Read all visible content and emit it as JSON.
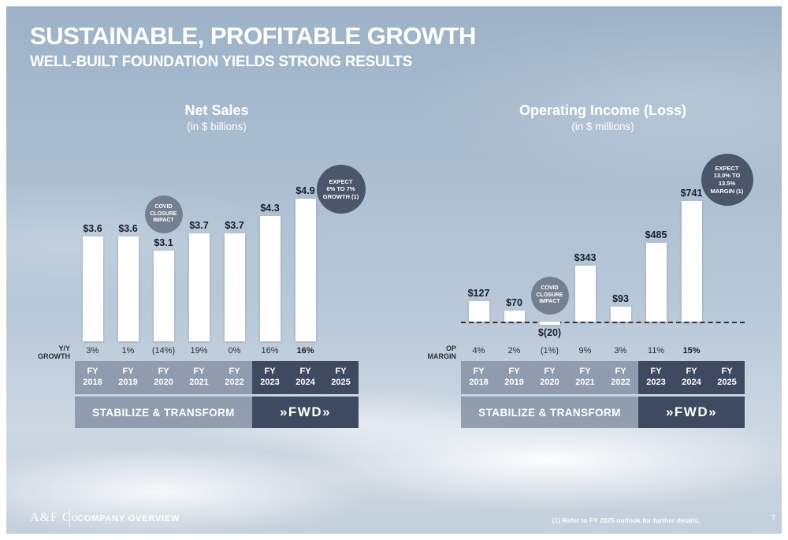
{
  "slide": {
    "title": "SUSTAINABLE, PROFITABLE GROWTH",
    "subtitle": "WELL-BUILT FOUNDATION YIELDS STRONG RESULTS",
    "footer": {
      "brand": "A&F Co.",
      "section": "COMPANY OVERVIEW",
      "footnote": "(1) Refer to FY 2025 outlook for further details.",
      "page_number": "7"
    }
  },
  "colors": {
    "era_light_band": "#8693a4",
    "era_dark_band": "#3e4a5f",
    "covid_circle": "#74808f",
    "expect_circle": "#4c5669",
    "bar_fill": "#ffffff",
    "dark_text": "#15202e",
    "light_text": "#ffffff"
  },
  "chart_data": [
    {
      "type": "bar",
      "title": "Net Sales",
      "subtitle": "(in $ billions)",
      "categories": [
        "FY 2018",
        "FY 2019",
        "FY 2020",
        "FY 2021",
        "FY 2022",
        "FY 2023",
        "FY 2024",
        "FY 2025"
      ],
      "values": [
        3.6,
        3.6,
        3.1,
        3.7,
        3.7,
        4.3,
        4.9,
        null
      ],
      "bar_labels": [
        "$3.6",
        "$3.6",
        "$3.1",
        "$3.7",
        "$3.7",
        "$4.3",
        "$4.9",
        ""
      ],
      "row_label": "Y/Y GROWTH",
      "row_values": [
        "3%",
        "1%",
        "(14%)",
        "19%",
        "0%",
        "16%",
        "16%",
        ""
      ],
      "row_bold_index": 6,
      "annotations": [
        {
          "id": "covid",
          "lines": [
            "COVID",
            "CLOSURE",
            "IMPACT"
          ]
        },
        {
          "id": "expect",
          "lines": [
            "EXPECT",
            "6% TO 7%",
            "GROWTH (1)"
          ]
        }
      ],
      "era_bands": [
        {
          "label": "STABILIZE & TRANSFORM",
          "span": [
            "FY 2018",
            "FY 2022"
          ]
        },
        {
          "label": "»FWD»",
          "span": [
            "FY 2023",
            "FY 2025"
          ]
        }
      ],
      "ylim": [
        0,
        5.5
      ],
      "grid": false,
      "legend": false
    },
    {
      "type": "bar",
      "title": "Operating Income (Loss)",
      "subtitle": "(in $ millions)",
      "categories": [
        "FY 2018",
        "FY 2019",
        "FY 2020",
        "FY 2021",
        "FY 2022",
        "FY 2023",
        "FY 2024",
        "FY 2025"
      ],
      "values": [
        127,
        70,
        -20,
        343,
        93,
        485,
        741,
        null
      ],
      "bar_labels": [
        "$127",
        "$70",
        "$(20)",
        "$343",
        "$93",
        "$485",
        "$741",
        ""
      ],
      "row_label": "OP MARGIN",
      "row_values": [
        "4%",
        "2%",
        "(1%)",
        "9%",
        "3%",
        "11%",
        "15%",
        ""
      ],
      "row_bold_index": 6,
      "annotations": [
        {
          "id": "covid",
          "lines": [
            "COVID",
            "CLOSURE",
            "IMPACT"
          ]
        },
        {
          "id": "expect",
          "lines": [
            "EXPECT",
            "13.0% TO",
            "13.5%",
            "MARGIN (1)"
          ]
        }
      ],
      "era_bands": [
        {
          "label": "STABILIZE & TRANSFORM",
          "span": [
            "FY 2018",
            "FY 2022"
          ]
        },
        {
          "label": "»FWD»",
          "span": [
            "FY 2023",
            "FY 2025"
          ]
        }
      ],
      "ylim": [
        -50,
        800
      ],
      "grid": false,
      "legend": false
    }
  ]
}
